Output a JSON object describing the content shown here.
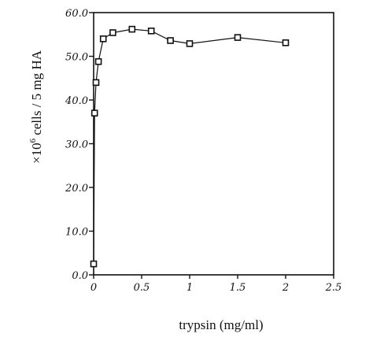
{
  "chart_data": {
    "type": "scatter",
    "title": "",
    "xlabel": "trypsin (mg/ml)",
    "ylabel_prefix": "×10",
    "ylabel_exponent": "6",
    "ylabel_suffix": " cells / 5 mg HA",
    "xlim": [
      0,
      2.5
    ],
    "ylim": [
      0,
      60
    ],
    "x_ticks": [
      0,
      0.5,
      1,
      1.5,
      2,
      2.5
    ],
    "x_tick_labels": [
      "0",
      "0.5",
      "1",
      "1.5",
      "2",
      "2.5"
    ],
    "y_ticks": [
      0,
      10,
      20,
      30,
      40,
      50,
      60
    ],
    "y_tick_labels": [
      "0.0",
      "10.0",
      "20.0",
      "30.0",
      "40.0",
      "50.0",
      "60.0"
    ],
    "grid": false,
    "legend": "none",
    "marker": "open-square",
    "line_color": "#111111",
    "series": [
      {
        "x": [
          0,
          0.01,
          0.025,
          0.05,
          0.1,
          0.2,
          0.4,
          0.6,
          0.8,
          1.0,
          1.5,
          2.0
        ],
        "y": [
          2.5,
          37.0,
          44.0,
          48.8,
          54.0,
          55.4,
          56.2,
          55.8,
          53.6,
          52.9,
          54.3,
          53.1
        ]
      }
    ]
  }
}
